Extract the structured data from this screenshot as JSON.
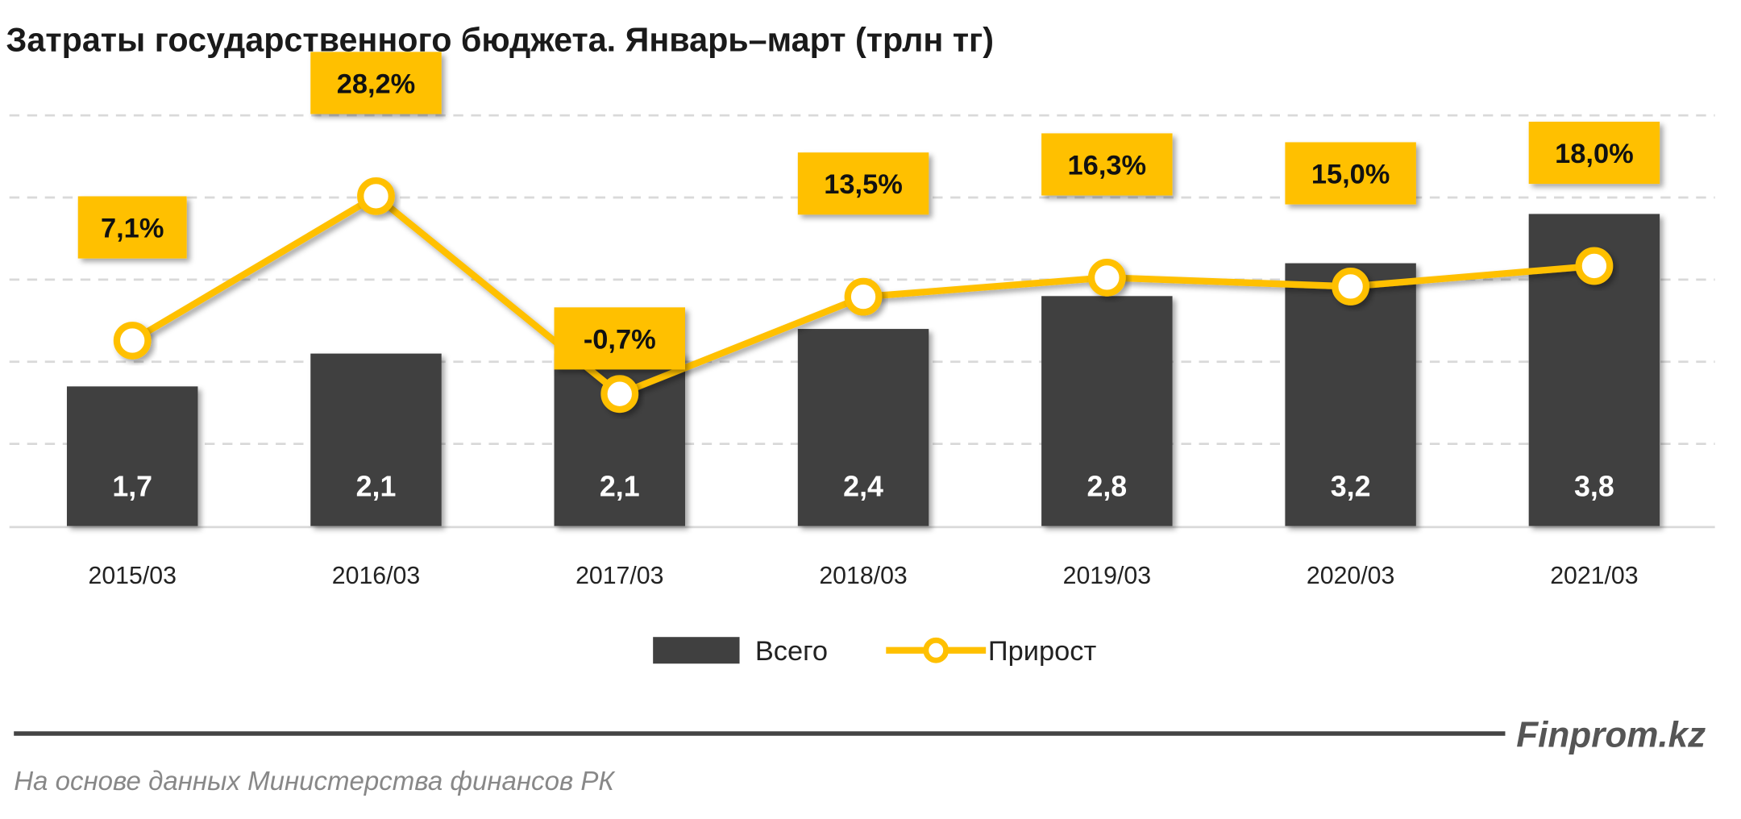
{
  "chart_data": {
    "type": "bar+line",
    "title": "Затраты государственного бюджета. Январь–март (трлн тг)",
    "categories": [
      "2015/03",
      "2016/03",
      "2017/03",
      "2018/03",
      "2019/03",
      "2020/03",
      "2021/03"
    ],
    "series": [
      {
        "name": "Всего",
        "type": "bar",
        "axis": "left",
        "values": [
          1.7,
          2.1,
          2.1,
          2.4,
          2.8,
          3.2,
          3.8
        ],
        "labels": [
          "1,7",
          "2,1",
          "2,1",
          "2,4",
          "2,8",
          "3,2",
          "3,8"
        ],
        "color": "#404040"
      },
      {
        "name": "Прирост",
        "type": "line",
        "axis": "right",
        "values": [
          7.1,
          28.2,
          -0.7,
          13.5,
          16.3,
          15.0,
          18.0
        ],
        "labels": [
          "7,1%",
          "28,2%",
          "-0,7%",
          "13,5%",
          "16,3%",
          "15,0%",
          "18,0%"
        ],
        "color": "#FFC000"
      }
    ],
    "ylim": [
      0,
      5
    ],
    "y2lim": [
      -20,
      40
    ],
    "grid": true,
    "legend": "bottom"
  },
  "footer": {
    "brand": "Finprom.kz",
    "source": "На основе данных  Министерства финансов  РК"
  }
}
